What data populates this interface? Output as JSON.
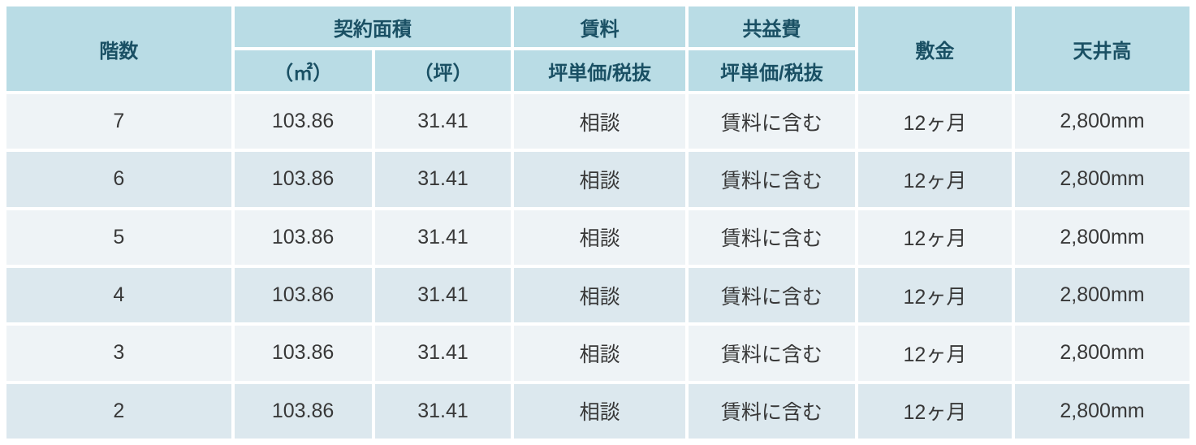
{
  "table": {
    "headers": {
      "floor": "階数",
      "contract_area": "契約面積",
      "area_m2_unit": "（㎡）",
      "area_tsubo_unit": "（坪）",
      "rent": "賃料",
      "rent_sub": "坪単価/税抜",
      "common_fee": "共益費",
      "common_fee_sub": "坪単価/税抜",
      "deposit": "敷金",
      "ceiling_height": "天井高"
    },
    "rows": [
      {
        "floor": "7",
        "area_m2": "103.86",
        "area_tsubo": "31.41",
        "rent": "相談",
        "common_fee": "賃料に含む",
        "deposit": "12ヶ月",
        "ceiling": "2,800mm"
      },
      {
        "floor": "6",
        "area_m2": "103.86",
        "area_tsubo": "31.41",
        "rent": "相談",
        "common_fee": "賃料に含む",
        "deposit": "12ヶ月",
        "ceiling": "2,800mm"
      },
      {
        "floor": "5",
        "area_m2": "103.86",
        "area_tsubo": "31.41",
        "rent": "相談",
        "common_fee": "賃料に含む",
        "deposit": "12ヶ月",
        "ceiling": "2,800mm"
      },
      {
        "floor": "4",
        "area_m2": "103.86",
        "area_tsubo": "31.41",
        "rent": "相談",
        "common_fee": "賃料に含む",
        "deposit": "12ヶ月",
        "ceiling": "2,800mm"
      },
      {
        "floor": "3",
        "area_m2": "103.86",
        "area_tsubo": "31.41",
        "rent": "相談",
        "common_fee": "賃料に含む",
        "deposit": "12ヶ月",
        "ceiling": "2,800mm"
      },
      {
        "floor": "2",
        "area_m2": "103.86",
        "area_tsubo": "31.41",
        "rent": "相談",
        "common_fee": "賃料に含む",
        "deposit": "12ヶ月",
        "ceiling": "2,800mm"
      }
    ]
  },
  "colors": {
    "header_bg": "#b9dce5",
    "header_text": "#1a5064",
    "row_odd_bg": "#eef3f6",
    "row_even_bg": "#dce8ee",
    "body_text": "#383838",
    "gap": "#ffffff"
  }
}
